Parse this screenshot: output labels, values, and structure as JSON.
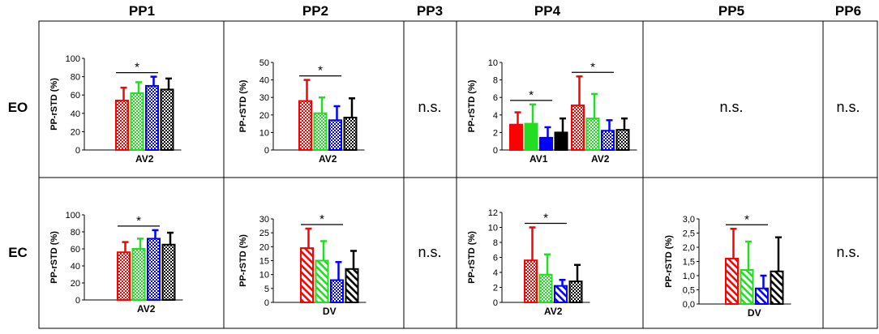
{
  "columns": [
    "PP1",
    "PP2",
    "PP3",
    "PP4",
    "PP5",
    "PP6"
  ],
  "rows": [
    "EO",
    "EC"
  ],
  "ns_label": "n.s.",
  "colors": {
    "red": "#ff0000",
    "green": "#22dd22",
    "blue": "#0000ff",
    "black": "#000000",
    "grid": "#000000"
  },
  "chart_data": [
    {
      "id": "eo-pp1",
      "type": "bar",
      "row": "EO",
      "column": "PP1",
      "ylabel": "PP-rSTD (%)",
      "ylim": [
        0,
        100
      ],
      "yticks": [
        "0",
        "20",
        "40",
        "60",
        "80",
        "100"
      ],
      "groups": [
        {
          "label": "AV2",
          "values": [
            54,
            62,
            70,
            66
          ],
          "errors": [
            14,
            12,
            10,
            12
          ]
        }
      ],
      "patterns": [
        "cross",
        "cross",
        "cross",
        "cross"
      ],
      "significance": [
        {
          "group": 0,
          "from": 0,
          "to": 2,
          "label": "*"
        }
      ]
    },
    {
      "id": "eo-pp2",
      "type": "bar",
      "row": "EO",
      "column": "PP2",
      "ylabel": "PP-rSTD (%)",
      "ylim": [
        0,
        50
      ],
      "yticks": [
        "0",
        "10",
        "20",
        "30",
        "40",
        "50"
      ],
      "groups": [
        {
          "label": "AV2",
          "values": [
            28,
            21,
            17,
            18.5
          ],
          "errors": [
            12,
            9,
            8,
            11
          ]
        }
      ],
      "patterns": [
        "cross",
        "cross",
        "cross",
        "cross"
      ],
      "significance": [
        {
          "group": 0,
          "from": 0,
          "to": 2,
          "label": "*"
        }
      ]
    },
    {
      "id": "eo-pp4",
      "type": "bar",
      "row": "EO",
      "column": "PP4",
      "ylabel": "PP-rSTD (%)",
      "ylim": [
        0,
        10
      ],
      "yticks": [
        "0",
        "2",
        "4",
        "6",
        "8",
        "10"
      ],
      "groups": [
        {
          "label": "AV1",
          "values": [
            2.9,
            3.0,
            1.4,
            2.0
          ],
          "errors": [
            1.4,
            2.2,
            1.2,
            1.6
          ]
        },
        {
          "label": "AV2",
          "values": [
            5.1,
            3.6,
            2.2,
            2.3
          ],
          "errors": [
            3.3,
            2.8,
            1.2,
            1.3
          ]
        }
      ],
      "patterns": [
        "solid",
        "solid",
        "solid",
        "solid",
        "cross",
        "cross",
        "cross",
        "cross"
      ],
      "significance": [
        {
          "group": 0,
          "from": 0,
          "to": 2,
          "label": "*"
        },
        {
          "group": 1,
          "from": 0,
          "to": 2,
          "label": "*"
        }
      ]
    },
    {
      "id": "ec-pp1",
      "type": "bar",
      "row": "EC",
      "column": "PP1",
      "ylabel": "PP-rSTD (%)",
      "ylim": [
        0,
        100
      ],
      "yticks": [
        "0",
        "20",
        "40",
        "60",
        "80",
        "100"
      ],
      "groups": [
        {
          "label": "AV2",
          "values": [
            56,
            60,
            72,
            65
          ],
          "errors": [
            12,
            12,
            10,
            14
          ]
        }
      ],
      "patterns": [
        "cross",
        "cross",
        "cross",
        "cross"
      ],
      "significance": [
        {
          "group": 0,
          "from": 0,
          "to": 2,
          "label": "*"
        }
      ]
    },
    {
      "id": "ec-pp2",
      "type": "bar",
      "row": "EC",
      "column": "PP2",
      "ylabel": "PP-rSTD (%)",
      "ylim": [
        0,
        30
      ],
      "yticks": [
        "0",
        "5",
        "10",
        "15",
        "20",
        "25",
        "30"
      ],
      "groups": [
        {
          "label": "DV",
          "values": [
            19.5,
            15,
            8,
            12
          ],
          "errors": [
            7,
            7,
            6.5,
            6.5
          ]
        }
      ],
      "patterns": [
        "diag",
        "diag",
        "cross",
        "diag"
      ],
      "significance": [
        {
          "group": 0,
          "from": 0,
          "to": 2,
          "label": "*"
        }
      ]
    },
    {
      "id": "ec-pp4",
      "type": "bar",
      "row": "EC",
      "column": "PP4",
      "ylabel": "PP-rSTD (%)",
      "ylim": [
        0,
        12
      ],
      "yticks": [
        "0",
        "2",
        "4",
        "6",
        "8",
        "10",
        "12"
      ],
      "groups": [
        {
          "label": "AV2",
          "values": [
            5.6,
            3.7,
            2.2,
            2.8
          ],
          "errors": [
            4.4,
            2.7,
            0.8,
            2.2
          ]
        }
      ],
      "patterns": [
        "cross",
        "cross",
        "diag",
        "cross"
      ],
      "significance": [
        {
          "group": 0,
          "from": 0,
          "to": 2,
          "label": "*"
        }
      ]
    },
    {
      "id": "ec-pp5",
      "type": "bar",
      "row": "EC",
      "column": "PP5",
      "ylabel": "PP-rSTD (%)",
      "ylim": [
        0,
        3
      ],
      "yticks": [
        "0,0",
        "0,5",
        "1,0",
        "1,5",
        "2,0",
        "2,5",
        "3,0"
      ],
      "groups": [
        {
          "label": "DV",
          "values": [
            1.6,
            1.2,
            0.55,
            1.15
          ],
          "errors": [
            1.05,
            1.0,
            0.45,
            1.2
          ]
        }
      ],
      "patterns": [
        "diag",
        "diag",
        "diag",
        "diag"
      ],
      "significance": [
        {
          "group": 0,
          "from": 0,
          "to": 2,
          "label": "*"
        }
      ]
    }
  ]
}
